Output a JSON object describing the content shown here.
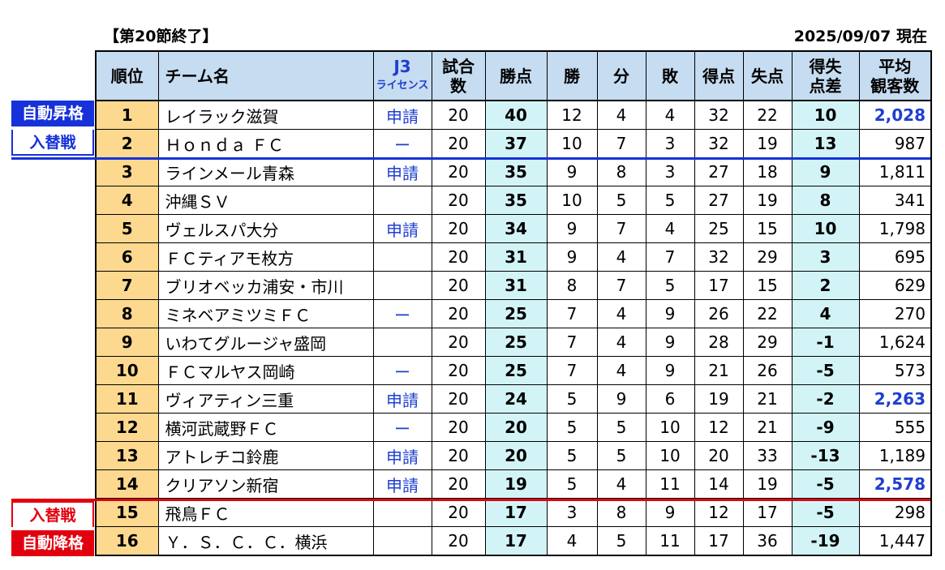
{
  "header": {
    "round_label": "【第20節終了】",
    "date_label": "2025/09/07 現在"
  },
  "columns": {
    "rank": "順位",
    "team": "チーム名",
    "j3_top": "J3",
    "j3_bottom": "ライセンス",
    "games_top": "試合",
    "games_bottom": "数",
    "points": "勝点",
    "wins": "勝",
    "draws": "分",
    "losses": "敗",
    "gf": "得点",
    "ga": "失点",
    "gd_top": "得失",
    "gd_bottom": "点差",
    "att_top": "平均",
    "att_bottom": "観客数"
  },
  "zones": {
    "promo_auto": "自動昇格",
    "promo_playoff": "入替戦",
    "rel_playoff": "入替戦",
    "rel_auto": "自動降格"
  },
  "colors": {
    "header_bg": "#c6dcf0",
    "rank_bg": "#fcd98f",
    "points_bg": "#d3f4f6",
    "promotion": "#1631d9",
    "relegation": "#e2000f"
  },
  "rows": [
    {
      "rank": "1",
      "team": "レイラック滋賀",
      "lic": "申請",
      "games": "20",
      "pts": "40",
      "w": "12",
      "d": "4",
      "l": "4",
      "gf": "32",
      "ga": "22",
      "gd": "10",
      "att": "2,028",
      "att_hl": true
    },
    {
      "rank": "2",
      "team": "Ｈｏｎｄａ ＦＣ",
      "lic": "ー",
      "games": "20",
      "pts": "37",
      "w": "10",
      "d": "7",
      "l": "3",
      "gf": "32",
      "ga": "19",
      "gd": "13",
      "att": "987",
      "att_hl": false
    },
    {
      "rank": "3",
      "team": "ラインメール青森",
      "lic": "申請",
      "games": "20",
      "pts": "35",
      "w": "9",
      "d": "8",
      "l": "3",
      "gf": "27",
      "ga": "18",
      "gd": "9",
      "att": "1,811",
      "att_hl": false
    },
    {
      "rank": "4",
      "team": "沖縄ＳＶ",
      "lic": "",
      "games": "20",
      "pts": "35",
      "w": "10",
      "d": "5",
      "l": "5",
      "gf": "27",
      "ga": "19",
      "gd": "8",
      "att": "341",
      "att_hl": false
    },
    {
      "rank": "5",
      "team": "ヴェルスパ大分",
      "lic": "申請",
      "games": "20",
      "pts": "34",
      "w": "9",
      "d": "7",
      "l": "4",
      "gf": "25",
      "ga": "15",
      "gd": "10",
      "att": "1,798",
      "att_hl": false
    },
    {
      "rank": "6",
      "team": "ＦＣティアモ枚方",
      "lic": "",
      "games": "20",
      "pts": "31",
      "w": "9",
      "d": "4",
      "l": "7",
      "gf": "32",
      "ga": "29",
      "gd": "3",
      "att": "695",
      "att_hl": false
    },
    {
      "rank": "7",
      "team": "ブリオベッカ浦安・市川",
      "lic": "",
      "games": "20",
      "pts": "31",
      "w": "8",
      "d": "7",
      "l": "5",
      "gf": "17",
      "ga": "15",
      "gd": "2",
      "att": "629",
      "att_hl": false
    },
    {
      "rank": "8",
      "team": "ミネベアミツミＦＣ",
      "lic": "ー",
      "games": "20",
      "pts": "25",
      "w": "7",
      "d": "4",
      "l": "9",
      "gf": "26",
      "ga": "22",
      "gd": "4",
      "att": "270",
      "att_hl": false
    },
    {
      "rank": "9",
      "team": "いわてグルージャ盛岡",
      "lic": "",
      "games": "20",
      "pts": "25",
      "w": "7",
      "d": "4",
      "l": "9",
      "gf": "28",
      "ga": "29",
      "gd": "-1",
      "att": "1,624",
      "att_hl": false
    },
    {
      "rank": "10",
      "team": "ＦＣマルヤス岡崎",
      "lic": "ー",
      "games": "20",
      "pts": "25",
      "w": "7",
      "d": "4",
      "l": "9",
      "gf": "21",
      "ga": "26",
      "gd": "-5",
      "att": "573",
      "att_hl": false
    },
    {
      "rank": "11",
      "team": "ヴィアティン三重",
      "lic": "申請",
      "games": "20",
      "pts": "24",
      "w": "5",
      "d": "9",
      "l": "6",
      "gf": "19",
      "ga": "21",
      "gd": "-2",
      "att": "2,263",
      "att_hl": true
    },
    {
      "rank": "12",
      "team": "横河武蔵野ＦＣ",
      "lic": "ー",
      "games": "20",
      "pts": "20",
      "w": "5",
      "d": "5",
      "l": "10",
      "gf": "12",
      "ga": "21",
      "gd": "-9",
      "att": "555",
      "att_hl": false
    },
    {
      "rank": "13",
      "team": "アトレチコ鈴鹿",
      "lic": "申請",
      "games": "20",
      "pts": "20",
      "w": "5",
      "d": "5",
      "l": "10",
      "gf": "20",
      "ga": "33",
      "gd": "-13",
      "att": "1,189",
      "att_hl": false
    },
    {
      "rank": "14",
      "team": "クリアソン新宿",
      "lic": "申請",
      "games": "20",
      "pts": "19",
      "w": "5",
      "d": "4",
      "l": "11",
      "gf": "14",
      "ga": "19",
      "gd": "-5",
      "att": "2,578",
      "att_hl": true
    },
    {
      "rank": "15",
      "team": "飛鳥ＦＣ",
      "lic": "",
      "games": "20",
      "pts": "17",
      "w": "3",
      "d": "8",
      "l": "9",
      "gf": "12",
      "ga": "17",
      "gd": "-5",
      "att": "298",
      "att_hl": false
    },
    {
      "rank": "16",
      "team": "Ｙ．Ｓ．Ｃ．Ｃ．横浜",
      "lic": "",
      "games": "20",
      "pts": "17",
      "w": "4",
      "d": "5",
      "l": "11",
      "gf": "17",
      "ga": "36",
      "gd": "-19",
      "att": "1,447",
      "att_hl": false
    }
  ]
}
